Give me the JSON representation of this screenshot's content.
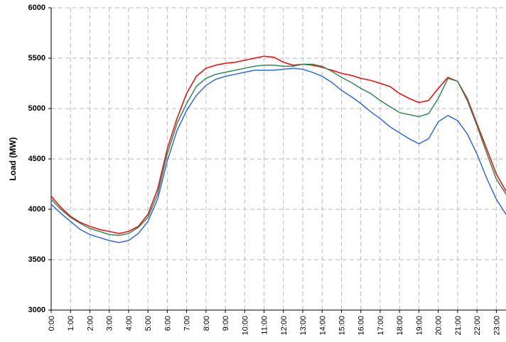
{
  "chart_data": {
    "type": "line",
    "y_label": "Load (MW)",
    "x": [
      0,
      0.5,
      1,
      1.5,
      2,
      2.5,
      3,
      3.5,
      4,
      4.5,
      5,
      5.5,
      6,
      6.5,
      7,
      7.5,
      8,
      8.5,
      9,
      9.5,
      10,
      10.5,
      11,
      11.5,
      12,
      12.5,
      13,
      13.5,
      14,
      14.5,
      15,
      15.5,
      16,
      16.5,
      17,
      17.5,
      18,
      18.5,
      19,
      19.5,
      20,
      20.5,
      21,
      21.5,
      22,
      22.5,
      23,
      23.5
    ],
    "series": [
      {
        "color": "#ff0000",
        "values": [
          4130,
          4020,
          3930,
          3870,
          3830,
          3800,
          3780,
          3760,
          3780,
          3830,
          3950,
          4200,
          4600,
          4900,
          5150,
          5320,
          5400,
          5430,
          5450,
          5460,
          5480,
          5500,
          5520,
          5510,
          5460,
          5430,
          5440,
          5430,
          5410,
          5380,
          5350,
          5330,
          5300,
          5280,
          5250,
          5220,
          5150,
          5100,
          5060,
          5080,
          5200,
          5310,
          5270,
          5100,
          4850,
          4600,
          4350,
          4180
        ]
      },
      {
        "color": "#2e8b57",
        "values": [
          4100,
          4000,
          3920,
          3860,
          3810,
          3780,
          3750,
          3740,
          3760,
          3820,
          3920,
          4150,
          4550,
          4850,
          5050,
          5220,
          5300,
          5340,
          5360,
          5380,
          5400,
          5420,
          5430,
          5430,
          5420,
          5420,
          5440,
          5440,
          5420,
          5370,
          5310,
          5260,
          5200,
          5150,
          5080,
          5020,
          4960,
          4940,
          4920,
          4950,
          5100,
          5300,
          5270,
          5080,
          4830,
          4560,
          4300,
          4150
        ]
      },
      {
        "color": "#3366ee",
        "values": [
          4050,
          3960,
          3880,
          3800,
          3750,
          3720,
          3690,
          3670,
          3690,
          3760,
          3880,
          4100,
          4480,
          4780,
          4980,
          5130,
          5230,
          5290,
          5320,
          5340,
          5360,
          5380,
          5380,
          5380,
          5390,
          5400,
          5390,
          5360,
          5320,
          5260,
          5180,
          5120,
          5050,
          4970,
          4900,
          4820,
          4760,
          4700,
          4650,
          4700,
          4870,
          4930,
          4880,
          4750,
          4550,
          4310,
          4100,
          3950
        ]
      }
    ],
    "xlim": [
      0,
      23.5
    ],
    "xticks": [
      {
        "value": 0,
        "label": "0:00"
      },
      {
        "value": 1,
        "label": "1:00"
      },
      {
        "value": 2,
        "label": "2:00"
      },
      {
        "value": 3,
        "label": "3:00"
      },
      {
        "value": 4,
        "label": "4:00"
      },
      {
        "value": 5,
        "label": "5:00"
      },
      {
        "value": 6,
        "label": "6:00"
      },
      {
        "value": 7,
        "label": "7:00"
      },
      {
        "value": 8,
        "label": "8:00"
      },
      {
        "value": 9,
        "label": "9:00"
      },
      {
        "value": 10,
        "label": "10:00"
      },
      {
        "value": 11,
        "label": "11:00"
      },
      {
        "value": 12,
        "label": "12:00"
      },
      {
        "value": 13,
        "label": "13:00"
      },
      {
        "value": 14,
        "label": "14:00"
      },
      {
        "value": 15,
        "label": "15:00"
      },
      {
        "value": 16,
        "label": "16:00"
      },
      {
        "value": 17,
        "label": "17:00"
      },
      {
        "value": 18,
        "label": "18:00"
      },
      {
        "value": 19,
        "label": "19:00"
      },
      {
        "value": 20,
        "label": "20:00"
      },
      {
        "value": 21,
        "label": "21:00"
      },
      {
        "value": 22,
        "label": "22:00"
      },
      {
        "value": 23,
        "label": "23:00"
      }
    ],
    "ylim": [
      3000,
      6000
    ],
    "yticks": [
      3000,
      3500,
      4000,
      4500,
      5000,
      5500,
      6000
    ],
    "grid": true
  }
}
